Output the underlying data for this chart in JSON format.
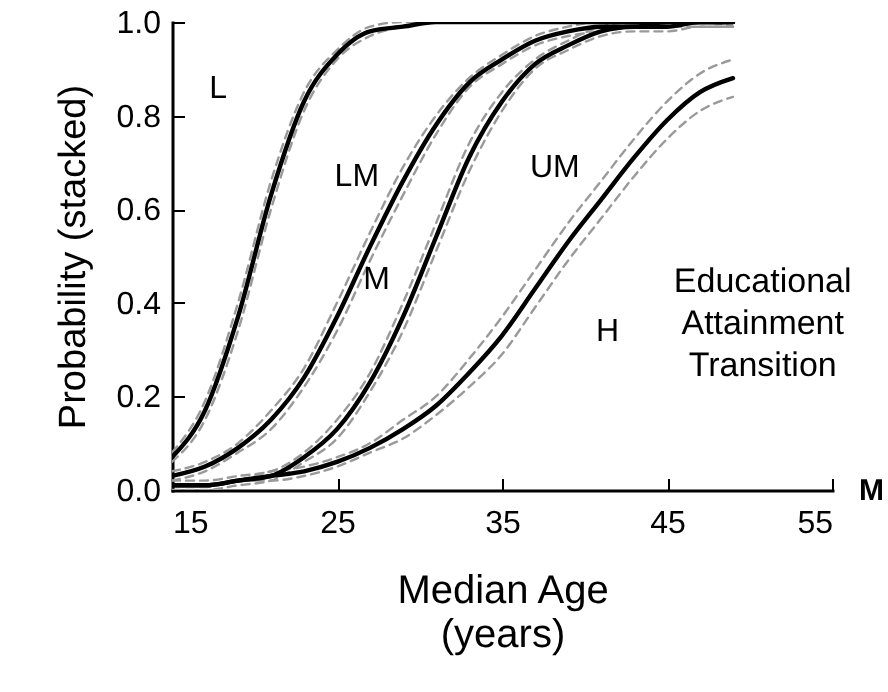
{
  "chart_data": {
    "type": "line",
    "xlabel": "Median Age\n(years)",
    "ylabel": "Probability (stacked)",
    "x": [
      15,
      17,
      19,
      21,
      23,
      25,
      27,
      29,
      31,
      33,
      35,
      37,
      39,
      41,
      43,
      45,
      47,
      49
    ],
    "series": [
      {
        "color": "#9a9a9a",
        "line_style": "dashed",
        "values": [
          0.06,
          0.15,
          0.34,
          0.6,
          0.81,
          0.92,
          0.97,
          0.99,
          1.0,
          1.0,
          1.0,
          1.0,
          1.0,
          1.0,
          1.0,
          1.0,
          1.0,
          0.99
        ]
      },
      {
        "color": "#9a9a9a",
        "line_style": "dashed",
        "values": [
          0.08,
          0.19,
          0.4,
          0.66,
          0.85,
          0.94,
          0.99,
          1.0,
          1.0,
          1.0,
          1.0,
          1.0,
          1.0,
          1.0,
          1.0,
          1.0,
          1.0,
          1.0
        ]
      },
      {
        "color": "#9a9a9a",
        "line_style": "dashed",
        "values": [
          0.02,
          0.04,
          0.08,
          0.13,
          0.22,
          0.34,
          0.49,
          0.63,
          0.76,
          0.86,
          0.91,
          0.95,
          0.97,
          0.98,
          0.99,
          0.99,
          0.99,
          0.99
        ]
      },
      {
        "color": "#9a9a9a",
        "line_style": "dashed",
        "values": [
          0.04,
          0.06,
          0.1,
          0.17,
          0.26,
          0.4,
          0.55,
          0.69,
          0.8,
          0.88,
          0.93,
          0.97,
          0.99,
          1.0,
          1.0,
          1.0,
          1.0,
          1.0
        ]
      },
      {
        "color": "#9a9a9a",
        "line_style": "dashed",
        "values": [
          0.0,
          0.0,
          0.01,
          0.02,
          0.06,
          0.11,
          0.21,
          0.34,
          0.51,
          0.68,
          0.81,
          0.9,
          0.94,
          0.97,
          0.98,
          0.98,
          0.99,
          0.99
        ]
      },
      {
        "color": "#9a9a9a",
        "line_style": "dashed",
        "values": [
          0.02,
          0.02,
          0.03,
          0.04,
          0.08,
          0.15,
          0.25,
          0.4,
          0.57,
          0.74,
          0.85,
          0.92,
          0.96,
          0.99,
          1.0,
          1.0,
          1.0,
          1.0
        ]
      },
      {
        "color": "#9a9a9a",
        "line_style": "dashed",
        "values": [
          0.01,
          0.01,
          0.02,
          0.02,
          0.03,
          0.05,
          0.08,
          0.11,
          0.16,
          0.22,
          0.29,
          0.39,
          0.49,
          0.58,
          0.67,
          0.75,
          0.81,
          0.84
        ]
      },
      {
        "color": "#9a9a9a",
        "line_style": "dashed",
        "values": [
          0.01,
          0.01,
          0.02,
          0.04,
          0.05,
          0.07,
          0.1,
          0.15,
          0.2,
          0.28,
          0.37,
          0.47,
          0.57,
          0.66,
          0.75,
          0.83,
          0.89,
          0.92
        ]
      },
      {
        "color": "#000000",
        "line_style": "solid",
        "values": [
          0.07,
          0.17,
          0.37,
          0.63,
          0.83,
          0.93,
          0.98,
          0.99,
          1.0,
          1.0,
          1.0,
          1.0,
          1.0,
          1.0,
          1.0,
          1.0,
          1.0,
          1.0
        ]
      },
      {
        "color": "#000000",
        "line_style": "solid",
        "values": [
          0.03,
          0.05,
          0.09,
          0.15,
          0.24,
          0.37,
          0.52,
          0.66,
          0.78,
          0.87,
          0.92,
          0.96,
          0.98,
          0.99,
          0.99,
          1.0,
          1.0,
          1.0
        ]
      },
      {
        "color": "#000000",
        "line_style": "solid",
        "values": [
          0.01,
          0.01,
          0.02,
          0.03,
          0.07,
          0.13,
          0.23,
          0.37,
          0.54,
          0.71,
          0.83,
          0.91,
          0.95,
          0.98,
          0.99,
          0.99,
          1.0,
          1.0
        ]
      },
      {
        "color": "#000000",
        "line_style": "solid",
        "values": [
          0.01,
          0.01,
          0.02,
          0.03,
          0.04,
          0.06,
          0.09,
          0.13,
          0.18,
          0.25,
          0.33,
          0.43,
          0.53,
          0.62,
          0.71,
          0.79,
          0.85,
          0.88
        ]
      }
    ],
    "xlim": [
      15,
      55
    ],
    "xticks": [
      15,
      25,
      35,
      45,
      55
    ],
    "ylim": [
      0,
      1
    ],
    "yticks": [
      {
        "value": 0,
        "label": "0.0"
      },
      0.2,
      0.4,
      0.6,
      0.8,
      {
        "value": 1,
        "label": "1.0"
      }
    ],
    "annotations": [
      "L",
      "LM",
      "M",
      "UM",
      "H",
      "M",
      "Educational Attainment Transition"
    ]
  }
}
